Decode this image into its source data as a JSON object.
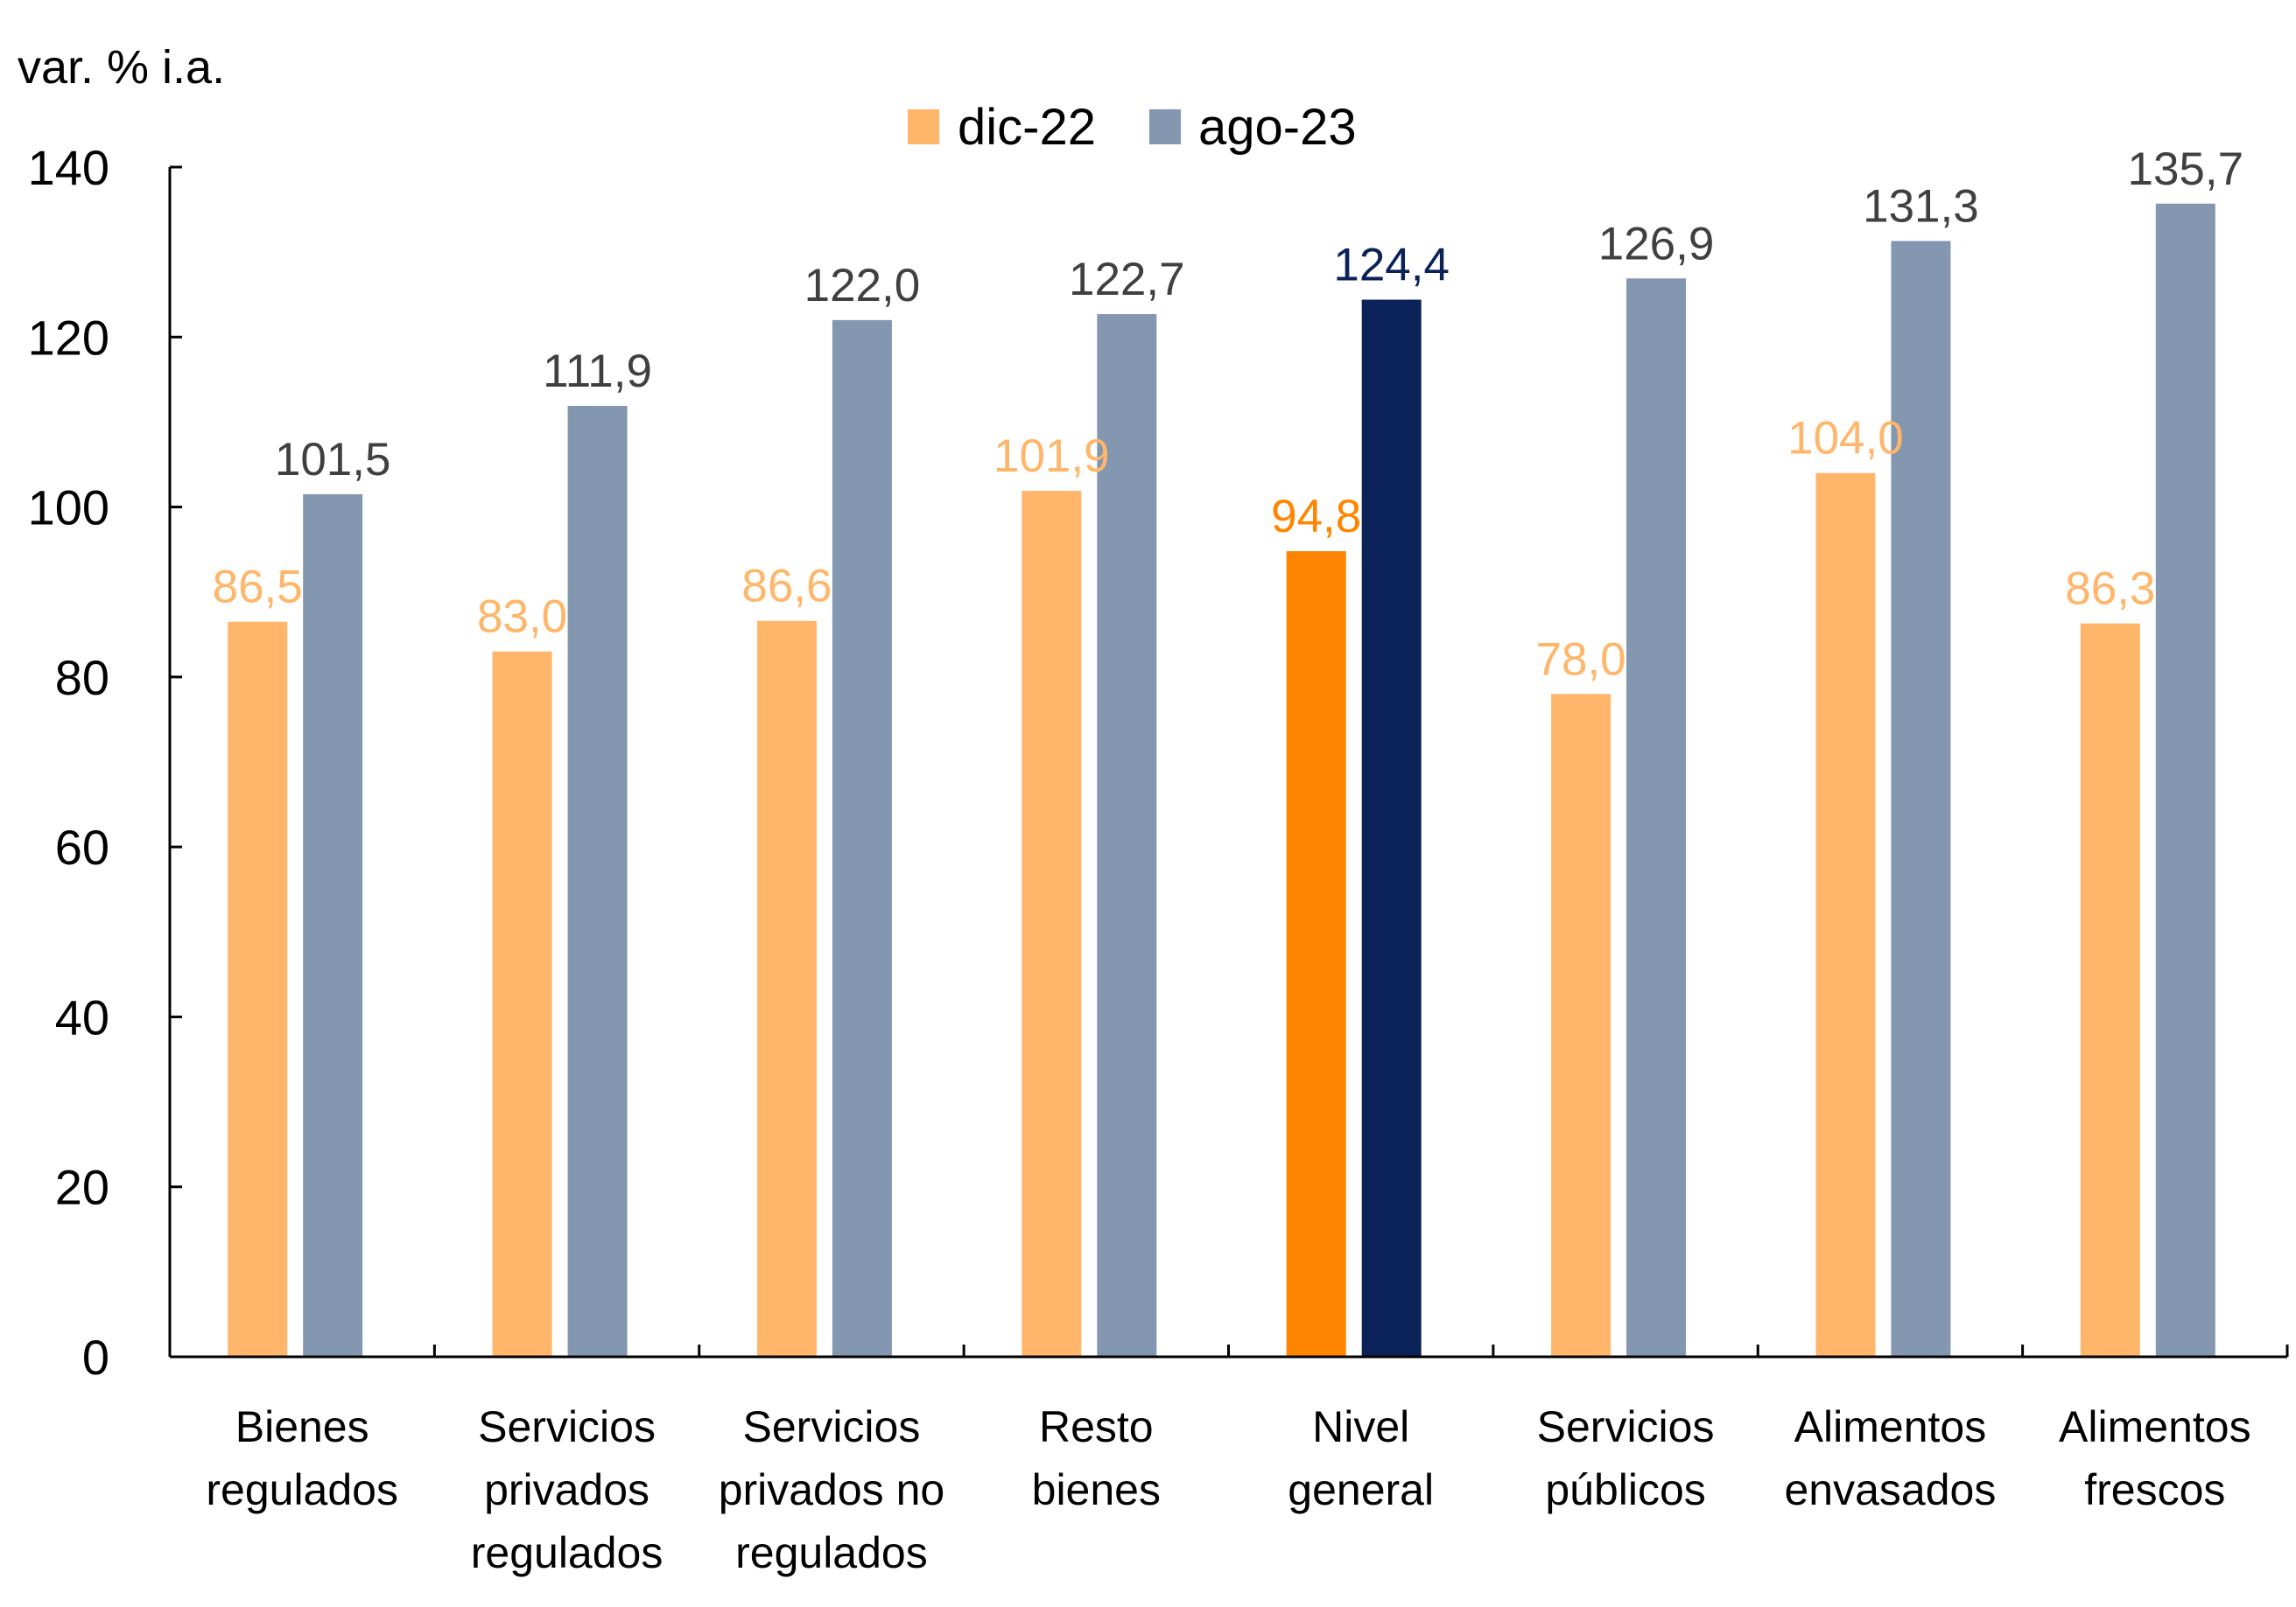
{
  "chart_data": {
    "type": "bar",
    "title": "",
    "unit_label": "var. % i.a.",
    "xlabel": "",
    "ylabel": "var. % i.a.",
    "ylim": [
      0,
      140
    ],
    "yticks": [
      0,
      20,
      40,
      60,
      80,
      100,
      120,
      140
    ],
    "grid": false,
    "legend_position": "top-center",
    "categories": [
      [
        "Bienes",
        "regulados"
      ],
      [
        "Servicios",
        "privados",
        "regulados"
      ],
      [
        "Servicios",
        "privados no",
        "regulados"
      ],
      [
        "Resto",
        "bienes"
      ],
      [
        "Nivel",
        "general"
      ],
      [
        "Servicios",
        "públicos"
      ],
      [
        "Alimentos",
        "envasados"
      ],
      [
        "Alimentos",
        "frescos"
      ]
    ],
    "series": [
      {
        "name": "dic-22",
        "color": "#FFB66A",
        "label_color": "#FFB66A",
        "highlight_color": "#FF8500",
        "values": [
          86.5,
          83.0,
          86.6,
          101.9,
          94.8,
          78.0,
          104.0,
          86.3
        ],
        "labels": [
          "86,5",
          "83,0",
          "86,6",
          "101,9",
          "94,8",
          "78,0",
          "104,0",
          "86,3"
        ]
      },
      {
        "name": "ago-23",
        "color": "#8497B0",
        "label_color": "#404040",
        "highlight_color": "#0B2259",
        "values": [
          101.5,
          111.9,
          122.0,
          122.7,
          124.4,
          126.9,
          131.3,
          135.7
        ],
        "labels": [
          "101,5",
          "111,9",
          "122,0",
          "122,7",
          "124,4",
          "126,9",
          "131,3",
          "135,7"
        ]
      }
    ],
    "highlight_category_index": 4
  }
}
